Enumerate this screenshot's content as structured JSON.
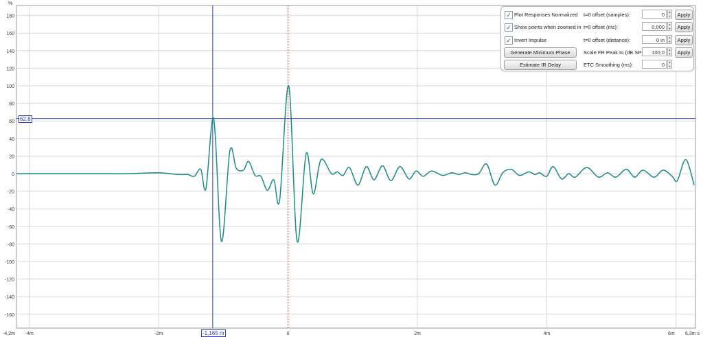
{
  "chart_data": {
    "type": "line",
    "ylabel": "%",
    "ylim": [
      -176,
      191
    ],
    "xlim": [
      -4.2,
      6.3
    ],
    "grid": true,
    "y_ticks": [
      "180",
      "160",
      "140",
      "120",
      "100",
      "80",
      "60",
      "40",
      "20",
      "0",
      "-20",
      "-40",
      "-60",
      "-80",
      "-100",
      "-120",
      "-140",
      "-160"
    ],
    "y_tick_values": [
      180,
      160,
      140,
      120,
      100,
      80,
      60,
      40,
      20,
      0,
      -20,
      -40,
      -60,
      -80,
      -100,
      -120,
      -140,
      -160
    ],
    "x_ticks": [
      {
        "label": "-4,2m",
        "value": -4.2,
        "grid": false
      },
      {
        "label": "-4m",
        "value": -4,
        "grid": true
      },
      {
        "label": "-2m",
        "value": -2,
        "grid": true
      },
      {
        "label": "0",
        "value": 0,
        "grid": false
      },
      {
        "label": "2m",
        "value": 2,
        "grid": true
      },
      {
        "label": "4m",
        "value": 4,
        "grid": true
      },
      {
        "label": "6m",
        "value": 6,
        "grid": true
      },
      {
        "label": "6,3m s",
        "value": 6.3,
        "grid": false
      }
    ],
    "series_color": "#1a8a88",
    "series": [
      {
        "x": [
          -4.2,
          -3,
          -2.5,
          -2.0,
          -1.7,
          -1.55,
          -1.45,
          -1.35,
          -1.27,
          -1.15,
          -1.03,
          -0.9,
          -0.8,
          -0.69,
          -0.61,
          -0.51,
          -0.42,
          -0.32,
          -0.22,
          -0.13,
          0.01,
          0.14,
          0.28,
          0.39,
          0.51,
          0.67,
          0.76,
          0.85,
          0.95,
          1.08,
          1.21,
          1.33,
          1.46,
          1.59,
          1.73,
          1.87,
          1.98,
          2.09,
          2.22,
          2.39,
          2.53,
          2.64,
          2.74,
          2.84,
          2.95,
          3.07,
          3.2,
          3.32,
          3.45,
          3.58,
          3.72,
          3.82,
          3.89,
          4.0,
          4.1,
          4.23,
          4.34,
          4.44,
          4.62,
          4.8,
          4.94,
          5.07,
          5.23,
          5.36,
          5.49,
          5.66,
          5.8,
          5.94,
          6.02,
          6.15,
          6.28
        ],
        "y": [
          0,
          0,
          0,
          1,
          -1,
          -1,
          -3,
          5,
          -17,
          62.8,
          -77,
          26,
          6,
          4,
          14,
          -2,
          -3,
          -19,
          -7,
          -30,
          100,
          -77,
          23,
          -23,
          16,
          0,
          2,
          -2,
          7,
          -13,
          8,
          -7,
          9,
          -8,
          8,
          -6,
          3,
          -3,
          3,
          -2,
          1,
          -1,
          1,
          -1,
          0,
          11,
          -13,
          1,
          5,
          -2,
          2,
          -1,
          1,
          -3,
          8,
          -6,
          0,
          -4,
          7,
          -4,
          1,
          -4,
          5,
          -4,
          4,
          -4,
          4,
          -3,
          -8,
          16,
          -13
        ]
      }
    ],
    "cursor": {
      "x_label": "-1,165 m",
      "x_value": -1.165,
      "y_label": "62,8",
      "y_value": 62.8,
      "color": "#3040c0"
    },
    "reference_line": {
      "x_value": 0,
      "color": "#e04040"
    }
  },
  "panel": {
    "checkboxes": [
      {
        "label": "Plot Responses Normalized",
        "checked": true
      },
      {
        "label": "Show points when zoomed in",
        "checked": true
      },
      {
        "label": "Invert Impulse",
        "checked": true
      }
    ],
    "buttons": [
      "Generate Minimum Phase",
      "Estimate IR Delay"
    ],
    "fields": [
      {
        "label": "t=0 offset (samples):",
        "value": "0",
        "apply": "Apply"
      },
      {
        "label": "t=0 offset (ms):",
        "value": "0,000",
        "apply": "Apply"
      },
      {
        "label": "t=0 offset (distance):",
        "value": "0 in",
        "apply": "Apply"
      },
      {
        "label": "Scale FR Peak to (dB SPL):",
        "value": "100,0",
        "apply": "Apply"
      },
      {
        "label": "ETC Smoothing (ms):",
        "value": "0"
      }
    ]
  }
}
